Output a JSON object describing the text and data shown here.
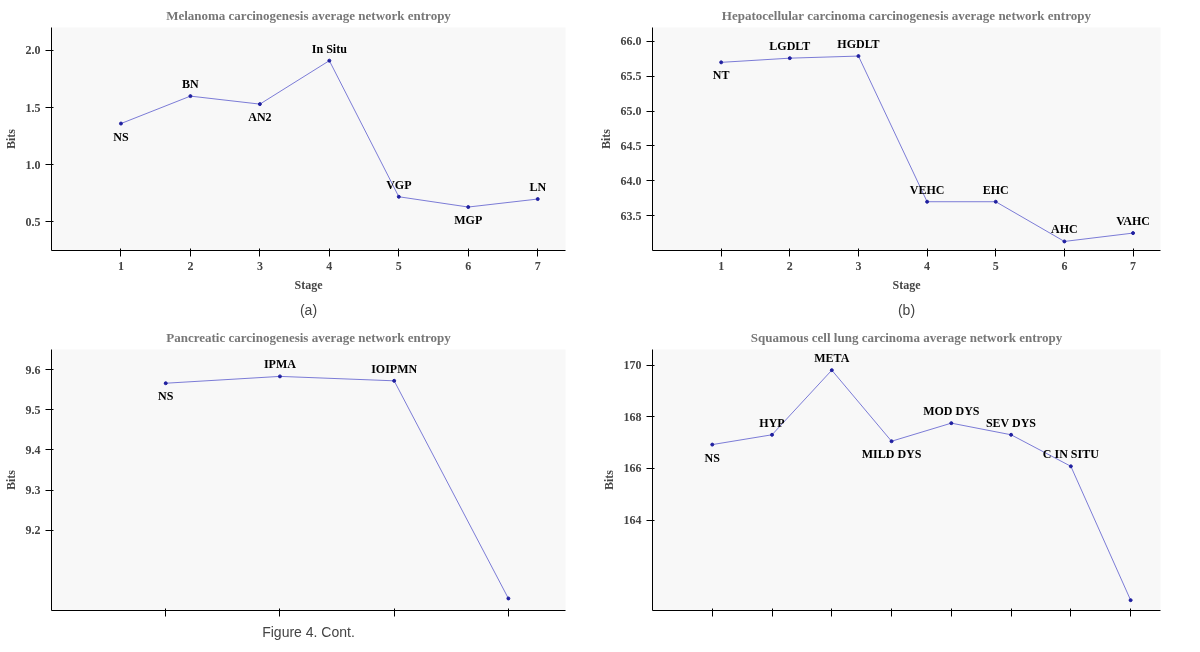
{
  "chart_data": [
    {
      "type": "line",
      "title": "Melanoma carcinogenesis average network entropy",
      "xlabel": "Stage",
      "ylabel": "Bits",
      "x": [
        1,
        2,
        3,
        4,
        5,
        6,
        7
      ],
      "series": [
        {
          "color": "#7b7bd6",
          "values": [
            1.36,
            1.6,
            1.53,
            1.91,
            0.72,
            0.63,
            0.7
          ]
        }
      ],
      "xlim": [
        0,
        7.4
      ],
      "ylim": [
        0.25,
        2.2
      ],
      "xticks": [
        1,
        2,
        3,
        4,
        5,
        6,
        7
      ],
      "yticks": [
        0.5,
        {
          "value": 1,
          "label": "1.0"
        },
        1.5,
        {
          "value": 2,
          "label": "2.0"
        }
      ],
      "marker": "circle",
      "grid": false,
      "annotations": [
        "(a)",
        {
          "text": "NS",
          "x": 1,
          "y": 1.36
        },
        {
          "text": "BN",
          "x": 2,
          "y": 1.6
        },
        {
          "text": "AN2",
          "x": 3,
          "y": 1.53
        },
        {
          "text": "In Situ",
          "x": 4,
          "y": 1.91
        },
        {
          "text": "VGP",
          "x": 5,
          "y": 0.72
        },
        {
          "text": "MGP",
          "x": 6,
          "y": 0.63
        },
        {
          "text": "LN",
          "x": 7,
          "y": 0.7
        }
      ]
    },
    {
      "type": "line",
      "title": "Hepatocellular carcinoma carcinogenesis average network entropy",
      "xlabel": "Stage",
      "ylabel": "Bits",
      "x": [
        1,
        2,
        3,
        4,
        5,
        6,
        7
      ],
      "series": [
        {
          "color": "#7b7bd6",
          "values": [
            65.7,
            65.76,
            65.79,
            63.7,
            63.7,
            63.13,
            63.25
          ]
        }
      ],
      "xlim": [
        0,
        7.4
      ],
      "ylim": [
        63.0,
        66.2
      ],
      "xticks": [
        1,
        2,
        3,
        4,
        5,
        6,
        7
      ],
      "yticks": [
        63.5,
        {
          "value": 64,
          "label": "64.0"
        },
        64.5,
        {
          "value": 65,
          "label": "65.0"
        },
        65.5,
        {
          "value": 66,
          "label": "66.0"
        }
      ],
      "marker": "circle",
      "grid": false,
      "annotations": [
        "(b)",
        {
          "text": "NT",
          "x": 1,
          "y": 65.7
        },
        {
          "text": "LGDLT",
          "x": 2,
          "y": 65.76
        },
        {
          "text": "HGDLT",
          "x": 3,
          "y": 65.79
        },
        {
          "text": "VEHC",
          "x": 4,
          "y": 63.7
        },
        {
          "text": "EHC",
          "x": 5,
          "y": 63.7
        },
        {
          "text": "AHC",
          "x": 6,
          "y": 63.13
        },
        {
          "text": "VAHC",
          "x": 7,
          "y": 63.25
        }
      ]
    },
    {
      "type": "line",
      "title": "Pancreatic carcinogenesis average network entropy",
      "ylabel": "Bits",
      "categories": [
        null,
        null,
        null,
        null
      ],
      "series": [
        {
          "color": "#7b7bd6",
          "values": [
            9.566,
            9.583,
            9.572,
            9.03
          ]
        }
      ],
      "ylim": [
        9.0,
        9.65
      ],
      "yticks": [
        9.2,
        9.3,
        9.4,
        9.5,
        9.6
      ],
      "tick_labels": "y",
      "marker": "circle",
      "grid": false,
      "annotations": [
        "Figure 4. Cont.",
        {
          "text": "NS",
          "y": 9.566
        },
        {
          "text": "IPMA",
          "y": 9.583
        },
        {
          "text": "IOIPMN",
          "y": 9.572
        }
      ]
    },
    {
      "type": "line",
      "title": "Squamous cell lung carcinoma average network entropy",
      "ylabel": "Bits",
      "categories": [
        null,
        null,
        null,
        null,
        null,
        null,
        null,
        null
      ],
      "series": [
        {
          "color": "#7b7bd6",
          "values": [
            166.92,
            167.3,
            169.8,
            167.05,
            167.75,
            167.3,
            166.08,
            160.9
          ]
        }
      ],
      "ylim": [
        160.5,
        170.6
      ],
      "yticks": [
        164,
        166,
        168,
        170
      ],
      "tick_labels": "y",
      "marker": "circle",
      "grid": false,
      "annotations": [
        {
          "text": "NS",
          "y": 166.92
        },
        {
          "text": "HYP",
          "y": 167.3
        },
        {
          "text": "META",
          "y": 169.8
        },
        {
          "text": "MILD DYS",
          "y": 167.05
        },
        {
          "text": "MOD DYS",
          "y": 167.75
        },
        {
          "text": "SEV DYS",
          "y": 167.3
        },
        {
          "text": "C IN SITU",
          "y": 166.08
        }
      ]
    }
  ]
}
